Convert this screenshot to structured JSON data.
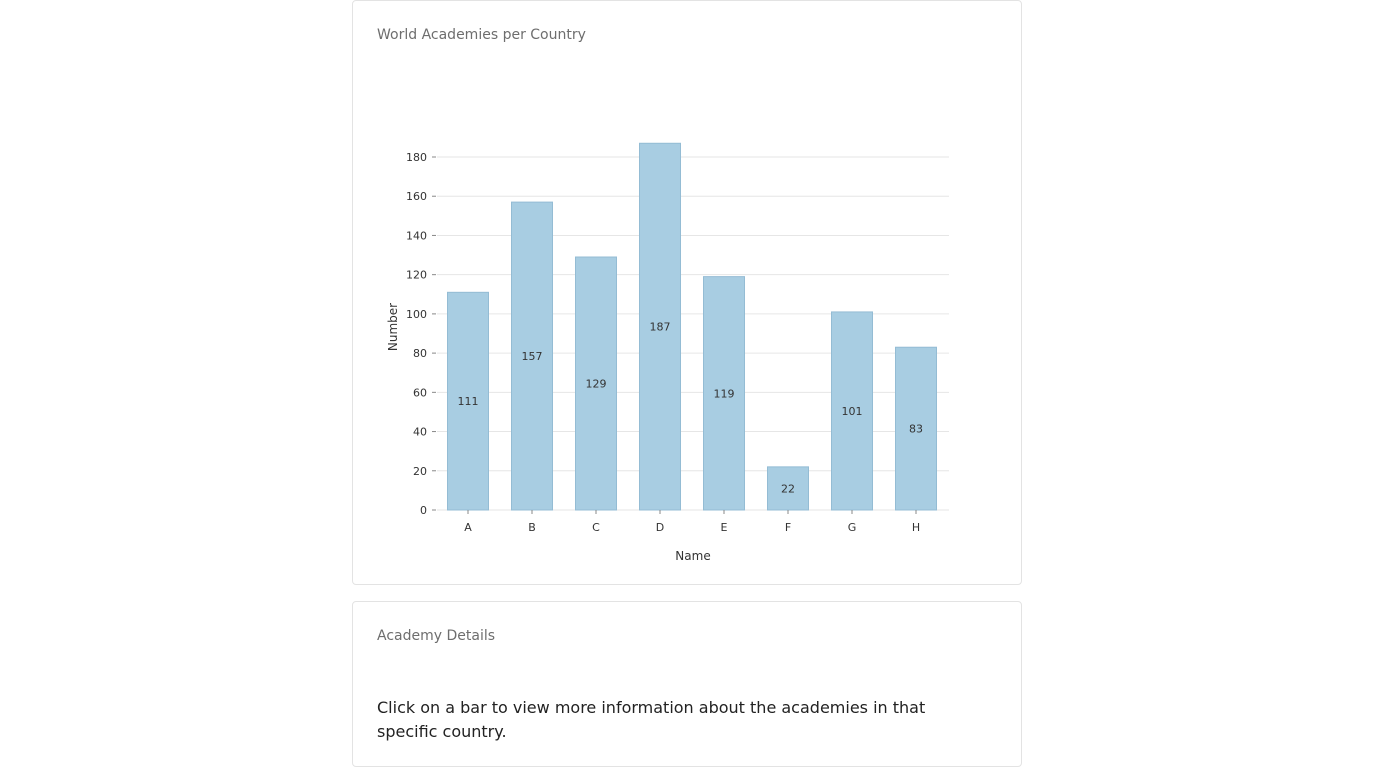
{
  "chart_card": {
    "title": "World Academies per Country"
  },
  "details_card": {
    "title": "Academy Details",
    "text": "Click on a bar to view more information about the academies in that specific country."
  },
  "chart_data": {
    "type": "bar",
    "title": "World Academies per Country",
    "categories": [
      "A",
      "B",
      "C",
      "D",
      "E",
      "F",
      "G",
      "H"
    ],
    "values": [
      111,
      157,
      129,
      187,
      119,
      22,
      101,
      83
    ],
    "xlabel": "Name",
    "ylabel": "Number",
    "ylim": [
      0,
      180
    ],
    "yticks": [
      0,
      20,
      40,
      60,
      80,
      100,
      120,
      140,
      160,
      180
    ],
    "grid": true,
    "bar_color": "#a8cde2",
    "bar_stroke": "#94bcd4",
    "grid_color": "#e6e6e6"
  }
}
